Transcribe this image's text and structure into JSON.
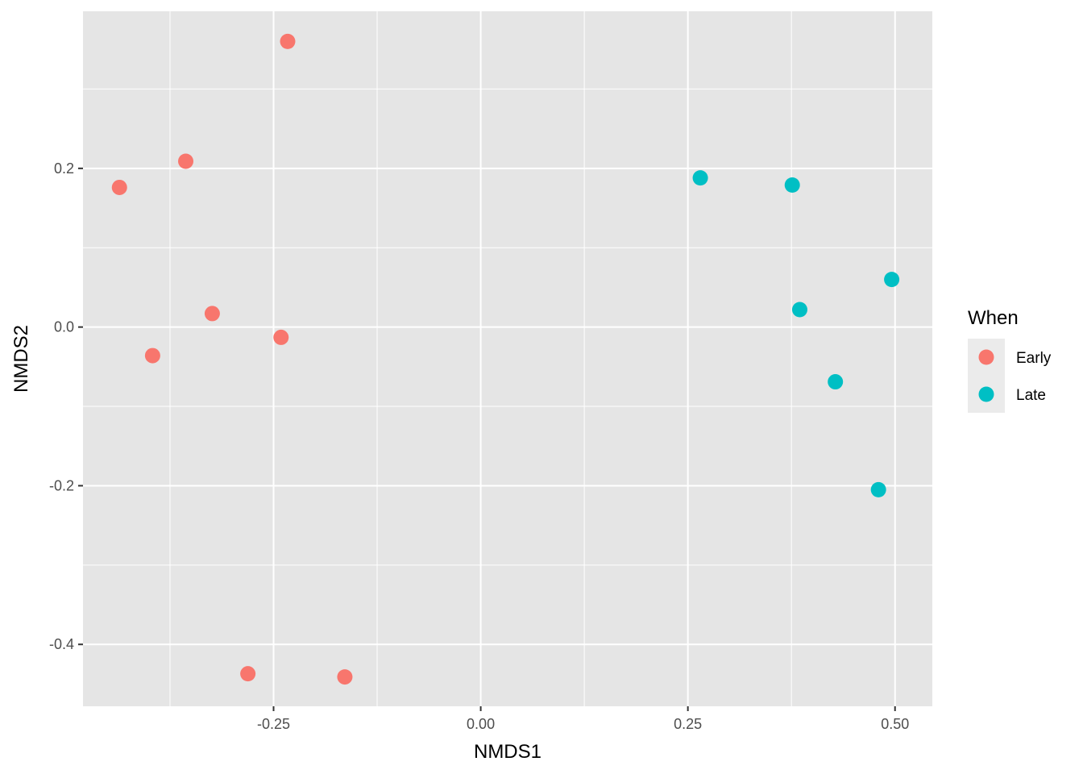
{
  "chart_data": {
    "type": "scatter",
    "title": "",
    "xlabel": "NMDS1",
    "ylabel": "NMDS2",
    "xlim": [
      -0.48,
      0.545
    ],
    "ylim": [
      -0.478,
      0.398
    ],
    "x_ticks": [
      -0.25,
      0.0,
      0.25,
      0.5
    ],
    "x_tick_labels": [
      "-0.25",
      "0.00",
      "0.25",
      "0.50"
    ],
    "y_ticks": [
      -0.4,
      -0.2,
      0.0,
      0.2
    ],
    "y_tick_labels": [
      "-0.4",
      "-0.2",
      "0.0",
      "0.2"
    ],
    "grid": true,
    "legend": {
      "title": "When",
      "position": "right"
    },
    "series": [
      {
        "name": "Early",
        "color": "#F8766D",
        "points": [
          {
            "x": -0.233,
            "y": 0.36
          },
          {
            "x": -0.356,
            "y": 0.209
          },
          {
            "x": -0.436,
            "y": 0.176
          },
          {
            "x": -0.324,
            "y": 0.017
          },
          {
            "x": -0.241,
            "y": -0.013
          },
          {
            "x": -0.396,
            "y": -0.036
          },
          {
            "x": -0.281,
            "y": -0.437
          },
          {
            "x": -0.164,
            "y": -0.441
          }
        ]
      },
      {
        "name": "Late",
        "color": "#00BFC4",
        "points": [
          {
            "x": 0.265,
            "y": 0.188
          },
          {
            "x": 0.376,
            "y": 0.179
          },
          {
            "x": 0.496,
            "y": 0.06
          },
          {
            "x": 0.385,
            "y": 0.022
          },
          {
            "x": 0.428,
            "y": -0.069
          },
          {
            "x": 0.48,
            "y": -0.205
          }
        ]
      }
    ]
  },
  "colors": {
    "panel_background": "#E5E5E5",
    "grid": "#FFFFFF",
    "tick_mark": "#333333",
    "tick_text": "#4D4D4D",
    "legend_key_background": "#EBEBEB"
  }
}
